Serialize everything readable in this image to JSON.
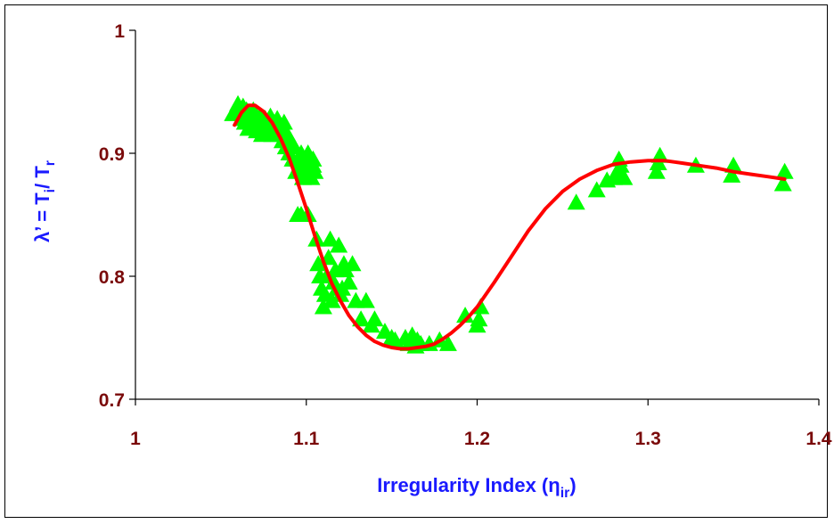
{
  "colors": {
    "tick_label": "#7a0a0a",
    "axis_title": "#1a1aff",
    "marker": "#00ff00",
    "fit_line": "#ff0000",
    "axis": "#000000"
  },
  "chart_data": {
    "type": "scatter",
    "xlabel": {
      "main": "Irregularity Index (η",
      "sub": "ir",
      "close": ")"
    },
    "ylabel": {
      "p1": "λ’ = T",
      "s1": "i",
      "p2": "/ T",
      "s2": "r"
    },
    "xlim": [
      1,
      1.4
    ],
    "ylim": [
      0.7,
      1
    ],
    "x_ticks": [
      1,
      1.1,
      1.2,
      1.3,
      1.4
    ],
    "x_tick_labels": [
      "1",
      "1.1",
      "1.2",
      "1.3",
      "1.4"
    ],
    "y_ticks": [
      0.7,
      0.8,
      0.9,
      1
    ],
    "y_tick_labels": [
      "0.7",
      "0.8",
      "0.9",
      "1"
    ],
    "grid": false,
    "legend": "none",
    "series": [
      {
        "marker": "triangle",
        "x": [
          1.057,
          1.059,
          1.06,
          1.062,
          1.063,
          1.064,
          1.065,
          1.066,
          1.067,
          1.068,
          1.069,
          1.07,
          1.071,
          1.072,
          1.073,
          1.074,
          1.075,
          1.076,
          1.077,
          1.078,
          1.079,
          1.08,
          1.081,
          1.082,
          1.083,
          1.084,
          1.085,
          1.086,
          1.087,
          1.088,
          1.089,
          1.09,
          1.091,
          1.092,
          1.093,
          1.094,
          1.095,
          1.095,
          1.096,
          1.097,
          1.097,
          1.098,
          1.099,
          1.1,
          1.101,
          1.101,
          1.102,
          1.103,
          1.104,
          1.104,
          1.105,
          1.106,
          1.107,
          1.108,
          1.109,
          1.11,
          1.111,
          1.112,
          1.113,
          1.114,
          1.115,
          1.116,
          1.117,
          1.118,
          1.119,
          1.12,
          1.121,
          1.122,
          1.123,
          1.125,
          1.127,
          1.129,
          1.132,
          1.135,
          1.138,
          1.14,
          1.146,
          1.15,
          1.152,
          1.158,
          1.16,
          1.162,
          1.164,
          1.165,
          1.167,
          1.172,
          1.178,
          1.183,
          1.193,
          1.2,
          1.201,
          1.202,
          1.258,
          1.27,
          1.276,
          1.28,
          1.282,
          1.283,
          1.284,
          1.286,
          1.305,
          1.306,
          1.307,
          1.328,
          1.349,
          1.35,
          1.379,
          1.38
        ],
        "y": [
          0.932,
          0.935,
          0.94,
          0.928,
          0.938,
          0.925,
          0.935,
          0.92,
          0.93,
          0.928,
          0.935,
          0.922,
          0.918,
          0.925,
          0.93,
          0.915,
          0.92,
          0.928,
          0.918,
          0.922,
          0.93,
          0.915,
          0.925,
          0.918,
          0.928,
          0.915,
          0.92,
          0.91,
          0.925,
          0.905,
          0.915,
          0.9,
          0.91,
          0.895,
          0.905,
          0.885,
          0.895,
          0.85,
          0.89,
          0.9,
          0.85,
          0.88,
          0.895,
          0.885,
          0.9,
          0.85,
          0.895,
          0.88,
          0.89,
          0.895,
          0.885,
          0.83,
          0.81,
          0.8,
          0.79,
          0.775,
          0.785,
          0.8,
          0.815,
          0.83,
          0.78,
          0.795,
          0.805,
          0.79,
          0.825,
          0.785,
          0.79,
          0.81,
          0.805,
          0.795,
          0.81,
          0.78,
          0.765,
          0.78,
          0.76,
          0.765,
          0.755,
          0.75,
          0.748,
          0.75,
          0.745,
          0.752,
          0.743,
          0.748,
          0.745,
          0.745,
          0.748,
          0.745,
          0.768,
          0.76,
          0.765,
          0.775,
          0.86,
          0.87,
          0.878,
          0.88,
          0.885,
          0.895,
          0.89,
          0.88,
          0.885,
          0.892,
          0.898,
          0.89,
          0.882,
          0.89,
          0.875,
          0.885
        ]
      },
      {
        "marker": "line",
        "x": [
          1.058,
          1.062,
          1.066,
          1.07,
          1.075,
          1.08,
          1.085,
          1.09,
          1.095,
          1.1,
          1.105,
          1.11,
          1.115,
          1.12,
          1.125,
          1.13,
          1.135,
          1.14,
          1.145,
          1.15,
          1.155,
          1.16,
          1.165,
          1.17,
          1.175,
          1.18,
          1.185,
          1.19,
          1.195,
          1.2,
          1.21,
          1.22,
          1.23,
          1.24,
          1.25,
          1.26,
          1.27,
          1.28,
          1.29,
          1.3,
          1.31,
          1.32,
          1.33,
          1.34,
          1.35,
          1.36,
          1.37,
          1.38
        ],
        "y": [
          0.923,
          0.933,
          0.939,
          0.939,
          0.934,
          0.925,
          0.912,
          0.896,
          0.876,
          0.855,
          0.833,
          0.812,
          0.794,
          0.78,
          0.768,
          0.759,
          0.752,
          0.747,
          0.744,
          0.742,
          0.741,
          0.741,
          0.742,
          0.743,
          0.745,
          0.749,
          0.754,
          0.76,
          0.767,
          0.775,
          0.795,
          0.816,
          0.837,
          0.855,
          0.869,
          0.879,
          0.886,
          0.891,
          0.893,
          0.894,
          0.894,
          0.892,
          0.89,
          0.888,
          0.885,
          0.883,
          0.881,
          0.879
        ]
      }
    ]
  }
}
